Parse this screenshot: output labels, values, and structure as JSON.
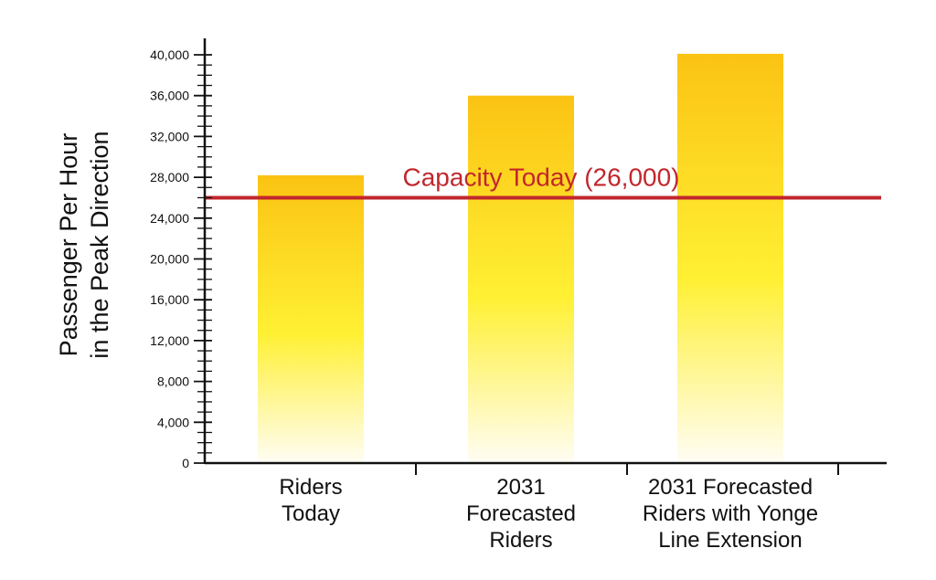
{
  "chart_data": {
    "type": "bar",
    "categories": [
      "Riders\nToday",
      "2031\nForecasted\nRiders",
      "2031 Forecasted\nRiders with Yonge\nLine Extension"
    ],
    "values": [
      28200,
      36000,
      40100
    ],
    "ylabel": "Passenger Per Hour\nin the Peak Direction",
    "ylim": [
      0,
      40000
    ],
    "yticks": [
      0,
      4000,
      8000,
      12000,
      16000,
      20000,
      24000,
      28000,
      32000,
      36000,
      40000
    ],
    "ytick_labels": [
      "0",
      "4,000",
      "8,000",
      "12,000",
      "16,000",
      "20,000",
      "24,000",
      "28,000",
      "32,000",
      "36,000",
      "40,000"
    ],
    "reference_line": {
      "value": 26000,
      "label": "Capacity Today (26,000)"
    },
    "colors": {
      "bar_top": "#FBC313",
      "bar_mid": "#FFF033",
      "bar_bottom": "#FFFDF5",
      "capacity_line": "#C1272D"
    },
    "grid": false
  }
}
